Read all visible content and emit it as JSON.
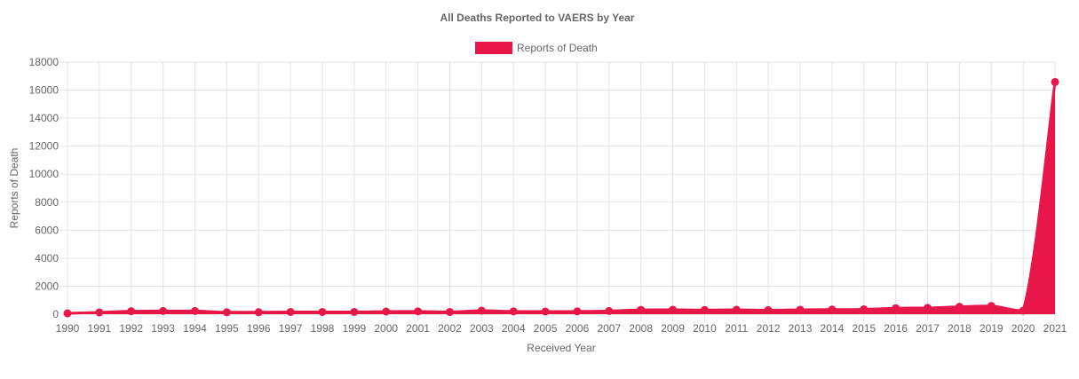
{
  "chart_data": {
    "type": "area",
    "title": "All Deaths Reported to VAERS by Year",
    "xlabel": "Received Year",
    "ylabel": "Reports of Death",
    "ylim": [
      0,
      18000
    ],
    "y_ticks": [
      "0",
      "2000",
      "4000",
      "6000",
      "8000",
      "10000",
      "12000",
      "14000",
      "16000",
      "18000"
    ],
    "categories": [
      "1990",
      "1991",
      "1992",
      "1993",
      "1994",
      "1995",
      "1996",
      "1997",
      "1998",
      "1999",
      "2000",
      "2001",
      "2002",
      "2003",
      "2004",
      "2005",
      "2006",
      "2007",
      "2008",
      "2009",
      "2010",
      "2011",
      "2012",
      "2013",
      "2014",
      "2015",
      "2016",
      "2017",
      "2018",
      "2019",
      "2020",
      "2021"
    ],
    "grid": true,
    "legend_position": "top-center",
    "series": [
      {
        "name": "Reports of Death",
        "color": "#e8174a",
        "values": [
          60,
          130,
          210,
          230,
          230,
          140,
          140,
          160,
          160,
          160,
          190,
          200,
          160,
          250,
          200,
          190,
          200,
          230,
          310,
          320,
          300,
          320,
          290,
          320,
          330,
          350,
          430,
          450,
          530,
          590,
          250,
          16580
        ]
      }
    ]
  }
}
